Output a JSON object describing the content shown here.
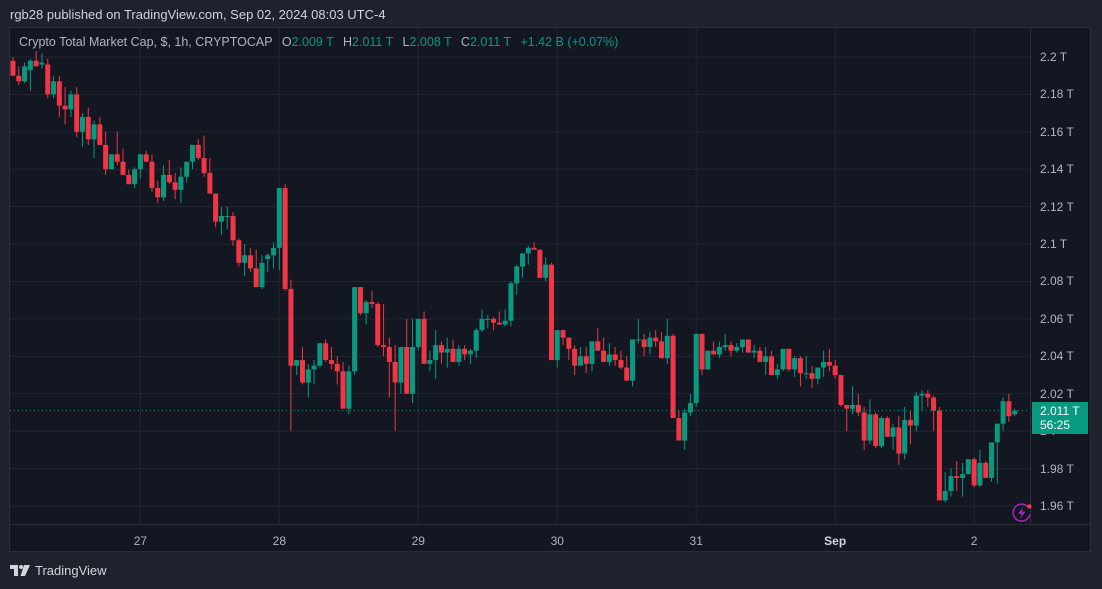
{
  "header": {
    "published_text": "rgb28 published on TradingView.com, Sep 02, 2024 08:03 UTC-4"
  },
  "legend": {
    "symbol_text": "Crypto Total Market Cap, $, 1h, CRYPTOCAP",
    "open_label": "O",
    "open_value": "2.009 T",
    "high_label": "H",
    "high_value": "2.011 T",
    "low_label": "L",
    "low_value": "2.008 T",
    "close_label": "C",
    "close_value": "2.011 T",
    "change_text": "+1.42 B (+0.07%)"
  },
  "price_tag": {
    "price": "2.011 T",
    "countdown": "56:25"
  },
  "footer": {
    "brand": "TradingView"
  },
  "colors": {
    "up": "#089981",
    "down": "#f23645",
    "background": "#131722",
    "outer": "#1e222d",
    "grid": "#232632",
    "text": "#b2b5be",
    "alert": "#9c27b0"
  },
  "chart_data": {
    "type": "candlestick",
    "title": "Crypto Total Market Cap, $, 1h, CRYPTOCAP",
    "xlabel": "",
    "ylabel": "",
    "ylim": [
      1.945,
      2.215
    ],
    "y_ticks": [
      "2.2 T",
      "2.18 T",
      "2.16 T",
      "2.14 T",
      "2.12 T",
      "2.1 T",
      "2.08 T",
      "2.06 T",
      "2.04 T",
      "2.02 T",
      "2 T",
      "1.98 T",
      "1.96 T"
    ],
    "y_tick_values": [
      2.2,
      2.18,
      2.16,
      2.14,
      2.12,
      2.1,
      2.08,
      2.06,
      2.04,
      2.02,
      2.0,
      1.98,
      1.96
    ],
    "x_ticks": [
      "27",
      "28",
      "29",
      "30",
      "31",
      "Sep",
      "2"
    ],
    "x_tick_candle_index": [
      22,
      46,
      70,
      94,
      118,
      142,
      166
    ],
    "last_price": 2.011,
    "grid": true,
    "candles_ohlc": [
      [
        2.198,
        2.2,
        2.19,
        2.19
      ],
      [
        2.19,
        2.195,
        2.185,
        2.187
      ],
      [
        2.187,
        2.197,
        2.186,
        2.195
      ],
      [
        2.193,
        2.199,
        2.182,
        2.198
      ],
      [
        2.198,
        2.203,
        2.195,
        2.195
      ],
      [
        2.196,
        2.202,
        2.194,
        2.197
      ],
      [
        2.196,
        2.199,
        2.178,
        2.18
      ],
      [
        2.18,
        2.19,
        2.178,
        2.187
      ],
      [
        2.187,
        2.19,
        2.168,
        2.174
      ],
      [
        2.174,
        2.184,
        2.164,
        2.172
      ],
      [
        2.172,
        2.182,
        2.168,
        2.18
      ],
      [
        2.18,
        2.184,
        2.157,
        2.16
      ],
      [
        2.16,
        2.17,
        2.152,
        2.168
      ],
      [
        2.168,
        2.173,
        2.153,
        2.156
      ],
      [
        2.156,
        2.166,
        2.146,
        2.164
      ],
      [
        2.164,
        2.168,
        2.155,
        2.153
      ],
      [
        2.153,
        2.16,
        2.137,
        2.14
      ],
      [
        2.14,
        2.148,
        2.14,
        2.148
      ],
      [
        2.148,
        2.16,
        2.142,
        2.144
      ],
      [
        2.144,
        2.151,
        2.138,
        2.137
      ],
      [
        2.137,
        2.14,
        2.132,
        2.132
      ],
      [
        2.132,
        2.141,
        2.13,
        2.14
      ],
      [
        2.14,
        2.148,
        2.135,
        2.148
      ],
      [
        2.148,
        2.15,
        2.144,
        2.144
      ],
      [
        2.144,
        2.148,
        2.128,
        2.13
      ],
      [
        2.13,
        2.134,
        2.122,
        2.125
      ],
      [
        2.125,
        2.142,
        2.123,
        2.137
      ],
      [
        2.137,
        2.145,
        2.132,
        2.133
      ],
      [
        2.133,
        2.138,
        2.124,
        2.129
      ],
      [
        2.129,
        2.141,
        2.122,
        2.136
      ],
      [
        2.136,
        2.144,
        2.133,
        2.144
      ],
      [
        2.144,
        2.152,
        2.14,
        2.153
      ],
      [
        2.153,
        2.156,
        2.145,
        2.146
      ],
      [
        2.146,
        2.158,
        2.136,
        2.138
      ],
      [
        2.138,
        2.146,
        2.127,
        2.127
      ],
      [
        2.127,
        2.127,
        2.109,
        2.112
      ],
      [
        2.112,
        2.12,
        2.105,
        2.115
      ],
      [
        2.115,
        2.12,
        2.108,
        2.115
      ],
      [
        2.115,
        2.117,
        2.099,
        2.102
      ],
      [
        2.102,
        2.103,
        2.088,
        2.09
      ],
      [
        2.09,
        2.1,
        2.083,
        2.094
      ],
      [
        2.094,
        2.098,
        2.085,
        2.087
      ],
      [
        2.087,
        2.097,
        2.081,
        2.077
      ],
      [
        2.077,
        2.094,
        2.076,
        2.09
      ],
      [
        2.092,
        2.095,
        2.085,
        2.094
      ],
      [
        2.094,
        2.101,
        2.087,
        2.098
      ],
      [
        2.098,
        2.129,
        2.086,
        2.13
      ],
      [
        2.13,
        2.132,
        2.075,
        2.076
      ],
      [
        2.076,
        2.081,
        2.0,
        2.035
      ],
      [
        2.035,
        2.032,
        2.03,
        2.038
      ],
      [
        2.038,
        2.045,
        2.025,
        2.026
      ],
      [
        2.026,
        2.036,
        2.018,
        2.033
      ],
      [
        2.033,
        2.038,
        2.025,
        2.035
      ],
      [
        2.035,
        2.046,
        2.034,
        2.047
      ],
      [
        2.047,
        2.049,
        2.037,
        2.038
      ],
      [
        2.038,
        2.045,
        2.033,
        2.036
      ],
      [
        2.036,
        2.04,
        2.025,
        2.032
      ],
      [
        2.032,
        2.037,
        2.012,
        2.012
      ],
      [
        2.012,
        2.035,
        2.009,
        2.032
      ],
      [
        2.032,
        2.077,
        2.03,
        2.077
      ],
      [
        2.077,
        2.075,
        2.062,
        2.063
      ],
      [
        2.063,
        2.07,
        2.057,
        2.069
      ],
      [
        2.069,
        2.075,
        2.066,
        2.068
      ],
      [
        2.068,
        2.069,
        2.045,
        2.046
      ],
      [
        2.046,
        2.068,
        2.04,
        2.045
      ],
      [
        2.045,
        2.05,
        2.018,
        2.037
      ],
      [
        2.037,
        2.046,
        2.0,
        2.026
      ],
      [
        2.026,
        2.04,
        2.02,
        2.045
      ],
      [
        2.045,
        2.06,
        2.023,
        2.02
      ],
      [
        2.02,
        2.06,
        2.015,
        2.045
      ],
      [
        2.045,
        2.06,
        2.043,
        2.06
      ],
      [
        2.06,
        2.064,
        2.04,
        2.036
      ],
      [
        2.036,
        2.043,
        2.032,
        2.038
      ],
      [
        2.038,
        2.054,
        2.028,
        2.046
      ],
      [
        2.046,
        2.048,
        2.036,
        2.042
      ],
      [
        2.042,
        2.05,
        2.034,
        2.044
      ],
      [
        2.044,
        2.049,
        2.037,
        2.037
      ],
      [
        2.037,
        2.046,
        2.035,
        2.044
      ],
      [
        2.044,
        2.046,
        2.038,
        2.041
      ],
      [
        2.041,
        2.044,
        2.036,
        2.043
      ],
      [
        2.043,
        2.055,
        2.039,
        2.054
      ],
      [
        2.054,
        2.065,
        2.053,
        2.06
      ],
      [
        2.06,
        2.062,
        2.055,
        2.06
      ],
      [
        2.06,
        2.061,
        2.054,
        2.058
      ],
      [
        2.058,
        2.064,
        2.057,
        2.057
      ],
      [
        2.057,
        2.065,
        2.056,
        2.059
      ],
      [
        2.059,
        2.08,
        2.056,
        2.079
      ],
      [
        2.079,
        2.089,
        2.073,
        2.088
      ],
      [
        2.088,
        2.094,
        2.082,
        2.095
      ],
      [
        2.095,
        2.099,
        2.089,
        2.098
      ],
      [
        2.098,
        2.101,
        2.097,
        2.097
      ],
      [
        2.097,
        2.096,
        2.083,
        2.082
      ],
      [
        2.082,
        2.093,
        2.08,
        2.089
      ],
      [
        2.089,
        2.09,
        2.04,
        2.038
      ],
      [
        2.038,
        2.054,
        2.034,
        2.054
      ],
      [
        2.054,
        2.054,
        2.046,
        2.05
      ],
      [
        2.05,
        2.05,
        2.038,
        2.044
      ],
      [
        2.044,
        2.046,
        2.03,
        2.035
      ],
      [
        2.035,
        2.045,
        2.036,
        2.04
      ],
      [
        2.04,
        2.045,
        2.031,
        2.036
      ],
      [
        2.036,
        2.048,
        2.032,
        2.048
      ],
      [
        2.048,
        2.055,
        2.047,
        2.043
      ],
      [
        2.043,
        2.05,
        2.037,
        2.037
      ],
      [
        2.037,
        2.047,
        2.035,
        2.041
      ],
      [
        2.041,
        2.045,
        2.035,
        2.038
      ],
      [
        2.038,
        2.043,
        2.033,
        2.034
      ],
      [
        2.034,
        2.04,
        2.03,
        2.027
      ],
      [
        2.027,
        2.043,
        2.024,
        2.049
      ],
      [
        2.049,
        2.06,
        2.047,
        2.049
      ],
      [
        2.049,
        2.052,
        2.04,
        2.045
      ],
      [
        2.045,
        2.053,
        2.041,
        2.05
      ],
      [
        2.05,
        2.054,
        2.045,
        2.048
      ],
      [
        2.048,
        2.053,
        2.04,
        2.039
      ],
      [
        2.039,
        2.06,
        2.036,
        2.051
      ],
      [
        2.051,
        2.052,
        2.012,
        2.007
      ],
      [
        2.007,
        2.011,
        1.995,
        1.995
      ],
      [
        1.995,
        2.012,
        1.99,
        2.01
      ],
      [
        2.01,
        2.02,
        2.008,
        2.015
      ],
      [
        2.015,
        2.051,
        2.013,
        2.052
      ],
      [
        2.052,
        2.048,
        2.03,
        2.033
      ],
      [
        2.033,
        2.043,
        2.033,
        2.043
      ],
      [
        2.043,
        2.048,
        2.042,
        2.041
      ],
      [
        2.041,
        2.048,
        2.039,
        2.045
      ],
      [
        2.045,
        2.052,
        2.043,
        2.046
      ],
      [
        2.046,
        2.048,
        2.04,
        2.043
      ],
      [
        2.043,
        2.047,
        2.042,
        2.045
      ],
      [
        2.045,
        2.047,
        2.042,
        2.049
      ],
      [
        2.049,
        2.049,
        2.042,
        2.042
      ],
      [
        2.042,
        2.046,
        2.039,
        2.043
      ],
      [
        2.043,
        2.045,
        2.038,
        2.037
      ],
      [
        2.037,
        2.045,
        2.03,
        2.04
      ],
      [
        2.04,
        2.043,
        2.036,
        2.03
      ],
      [
        2.03,
        2.036,
        2.028,
        2.033
      ],
      [
        2.033,
        2.043,
        2.032,
        2.044
      ],
      [
        2.044,
        2.044,
        2.032,
        2.033
      ],
      [
        2.033,
        2.04,
        2.029,
        2.039
      ],
      [
        2.039,
        2.04,
        2.024,
        2.031
      ],
      [
        2.031,
        2.04,
        2.028,
        2.031
      ],
      [
        2.031,
        2.035,
        2.023,
        2.028
      ],
      [
        2.028,
        2.034,
        2.025,
        2.034
      ],
      [
        2.034,
        2.043,
        2.029,
        2.037
      ],
      [
        2.037,
        2.044,
        2.032,
        2.035
      ],
      [
        2.035,
        2.038,
        2.028,
        2.03
      ],
      [
        2.03,
        2.03,
        2.013,
        2.014
      ],
      [
        2.014,
        2.014,
        2.0,
        2.012
      ],
      [
        2.012,
        2.024,
        2.009,
        2.014
      ],
      [
        2.014,
        2.02,
        2.008,
        2.01
      ],
      [
        2.01,
        2.013,
        1.99,
        1.995
      ],
      [
        1.995,
        2.017,
        1.993,
        2.009
      ],
      [
        2.009,
        2.01,
        1.991,
        1.992
      ],
      [
        1.992,
        2.008,
        1.991,
        2.007
      ],
      [
        2.007,
        2.008,
        1.997,
        1.997
      ],
      [
        1.997,
        2.004,
        1.99,
        2.002
      ],
      [
        2.002,
        2.008,
        1.982,
        1.988
      ],
      [
        1.988,
        2.013,
        1.985,
        2.006
      ],
      [
        2.006,
        2.011,
        1.993,
        2.003
      ],
      [
        2.003,
        2.021,
        2.0,
        2.019
      ],
      [
        2.019,
        2.022,
        2.011,
        2.02
      ],
      [
        2.02,
        2.022,
        2.013,
        2.018
      ],
      [
        2.018,
        2.019,
        2.0,
        2.011
      ],
      [
        2.011,
        2.013,
        1.963,
        1.963
      ],
      [
        1.963,
        1.978,
        1.962,
        1.968
      ],
      [
        1.968,
        1.98,
        1.965,
        1.976
      ],
      [
        1.976,
        1.984,
        1.968,
        1.975
      ],
      [
        1.975,
        1.983,
        1.965,
        1.977
      ],
      [
        1.977,
        1.985,
        1.977,
        1.985
      ],
      [
        1.985,
        1.986,
        1.97,
        1.971
      ],
      [
        1.971,
        1.99,
        1.97,
        1.983
      ],
      [
        1.983,
        1.984,
        1.978,
        1.975
      ],
      [
        1.975,
        1.985,
        1.973,
        1.994
      ],
      [
        1.994,
        2.004,
        1.972,
        2.004
      ],
      [
        2.004,
        2.018,
        2.0,
        2.016
      ],
      [
        2.016,
        2.02,
        2.005,
        2.008
      ],
      [
        2.009,
        2.012,
        2.008,
        2.011
      ]
    ]
  }
}
